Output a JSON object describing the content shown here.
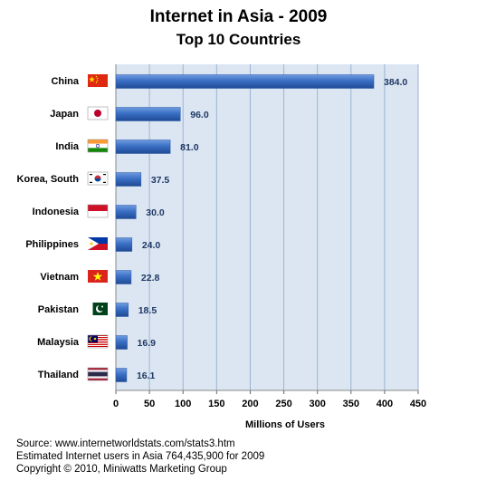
{
  "chart_data": {
    "type": "bar",
    "orientation": "horizontal",
    "title": "Internet in Asia - 2009",
    "subtitle": "Top 10 Countries",
    "xlabel": "Millions of Users",
    "ylabel": "",
    "xlim": [
      0,
      450
    ],
    "x_ticks": [
      "0",
      "50",
      "100",
      "150",
      "200",
      "250",
      "300",
      "350",
      "400",
      "450"
    ],
    "grid": true,
    "categories": [
      "China",
      "Japan",
      "India",
      "Korea, South",
      "Indonesia",
      "Philippines",
      "Vietnam",
      "Pakistan",
      "Malaysia",
      "Thailand"
    ],
    "values": [
      384.0,
      96.0,
      81.0,
      37.5,
      30.0,
      24.0,
      22.8,
      18.5,
      16.9,
      16.1
    ],
    "value_labels": [
      "384.0",
      "96.0",
      "81.0",
      "37.5",
      "30.0",
      "24.0",
      "22.8",
      "18.5",
      "16.9",
      "16.1"
    ],
    "flag_icons": [
      "china-flag-icon",
      "japan-flag-icon",
      "india-flag-icon",
      "korea-south-flag-icon",
      "indonesia-flag-icon",
      "philippines-flag-icon",
      "vietnam-flag-icon",
      "pakistan-flag-icon",
      "malaysia-flag-icon",
      "thailand-flag-icon"
    ],
    "colors": {
      "bar": "#3a6fc4",
      "plot_bg": "#dce6f2",
      "grid": "#9bb3d3",
      "value_label": "#1f3864"
    }
  },
  "footer": {
    "source": "Source: www.internetworldstats.com/stats3.htm",
    "estimate": "Estimated Internet users in Asia 764,435,900 for 2009",
    "copyright": "Copyright © 2010, Miniwatts Marketing Group"
  }
}
